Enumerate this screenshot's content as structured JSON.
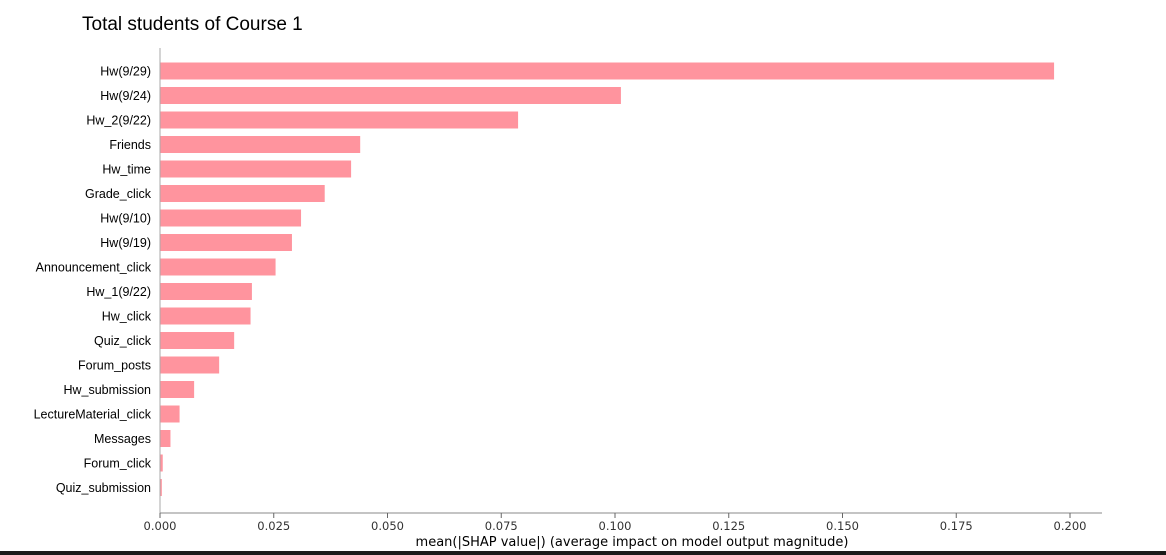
{
  "chart_data": {
    "type": "bar",
    "orientation": "horizontal",
    "title": "Total students of Course 1",
    "xlabel": "mean(|SHAP value|) (average impact on model output magnitude)",
    "ylabel": "",
    "xlim": [
      0,
      0.205
    ],
    "xticks": [
      "0.000",
      "0.025",
      "0.050",
      "0.075",
      "0.100",
      "0.125",
      "0.150",
      "0.175",
      "0.200"
    ],
    "xtick_values": [
      0,
      0.025,
      0.05,
      0.075,
      0.1,
      0.125,
      0.15,
      0.175,
      0.2
    ],
    "grid": false,
    "bar_color": "#ff949e",
    "categories": [
      "Hw(9/29)",
      "Hw(9/24)",
      "Hw_2(9/22)",
      "Friends",
      "Hw_time",
      "Grade_click",
      "Hw(9/10)",
      "Hw(9/19)",
      "Announcement_click",
      "Hw_1(9/22)",
      "Hw_click",
      "Quiz_click",
      "Forum_posts",
      "Hw_submission",
      "LectureMaterial_click",
      "Messages",
      "Forum_click",
      "Quiz_submission"
    ],
    "values": [
      0.1965,
      0.1013,
      0.0787,
      0.044,
      0.042,
      0.0362,
      0.031,
      0.029,
      0.0254,
      0.0202,
      0.0199,
      0.0163,
      0.013,
      0.0075,
      0.0043,
      0.0023,
      0.0006,
      0.0004
    ]
  }
}
